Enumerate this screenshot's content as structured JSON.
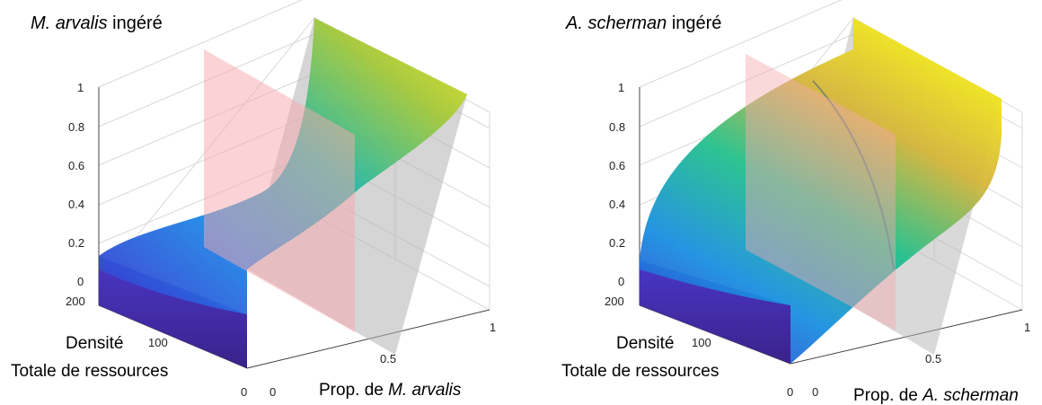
{
  "chart_data": [
    {
      "type": "surface3d",
      "title": {
        "italic": "M. arvalis",
        "rest": " ingéré"
      },
      "zlabel": "",
      "zlim": [
        0,
        1
      ],
      "z_ticks": [
        "0",
        "0.2",
        "0.4",
        "0.6",
        "0.8",
        "1"
      ],
      "density_label_line1": "Densité",
      "density_label_line2": "Totale de ressources",
      "density_ticks": [
        "0",
        "100",
        "200"
      ],
      "prop_label": {
        "prefix": "Prop. de ",
        "italic": "M. arvalis"
      },
      "prop_ticks": [
        "0",
        "0.5",
        "1"
      ],
      "grid": true,
      "colormap": "parula",
      "series": [
        {
          "role": "ingested surface",
          "colormap": "parula",
          "profile_vs_proportion": [
            [
              0,
              0.05
            ],
            [
              0.25,
              0.07
            ],
            [
              0.5,
              0.15
            ],
            [
              0.75,
              0.45
            ],
            [
              1,
              1.0
            ]
          ]
        },
        {
          "role": "vertical reference plane",
          "color": "#f7a8ad",
          "at_proportion": 0.5
        },
        {
          "role": "diagonal reference plane",
          "color": "#b3b3b3"
        }
      ]
    },
    {
      "type": "surface3d",
      "title": {
        "italic": "A. scherman",
        "rest": " ingéré"
      },
      "zlabel": "",
      "zlim": [
        0,
        1
      ],
      "z_ticks": [
        "0",
        "0.2",
        "0.4",
        "0.6",
        "0.8",
        "1"
      ],
      "density_label_line1": "Densité",
      "density_label_line2": "Totale de ressources",
      "density_ticks": [
        "0",
        "100",
        "200"
      ],
      "prop_label": {
        "prefix": "Prop. de ",
        "italic": "A. scherman"
      },
      "prop_ticks": [
        "0",
        "0.5",
        "1"
      ],
      "grid": true,
      "colormap": "parula",
      "series": [
        {
          "role": "ingested surface",
          "colormap": "parula",
          "profile_vs_proportion": [
            [
              0,
              0.05
            ],
            [
              0.25,
              0.55
            ],
            [
              0.5,
              0.78
            ],
            [
              0.75,
              0.92
            ],
            [
              1,
              1.0
            ]
          ]
        },
        {
          "role": "vertical reference plane",
          "color": "#f7a8ad",
          "at_proportion": 0.5
        },
        {
          "role": "diagonal reference plane",
          "color": "#b3b3b3"
        }
      ]
    }
  ]
}
